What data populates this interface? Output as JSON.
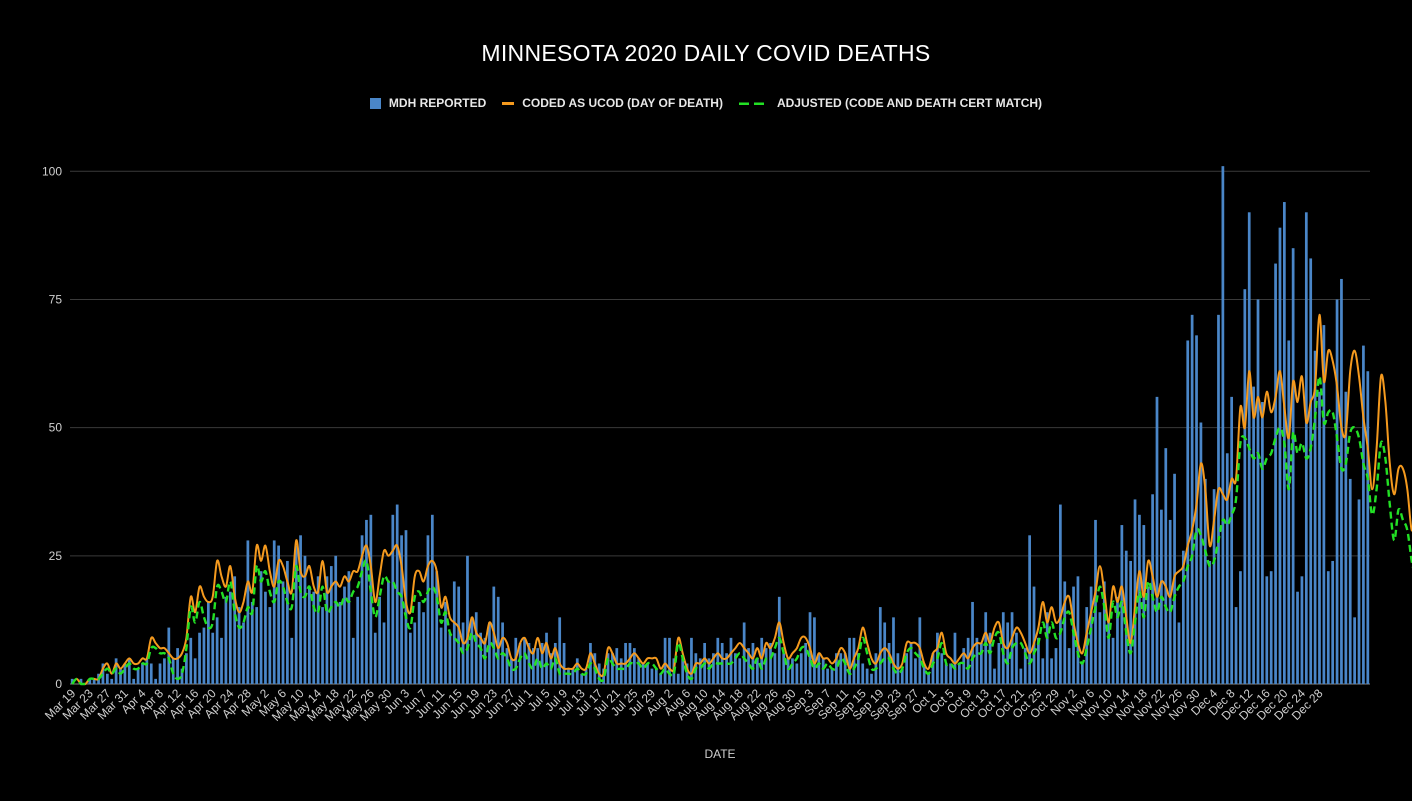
{
  "chart_data": {
    "type": "bar",
    "title": "MINNESOTA 2020 DAILY COVID DEATHS",
    "xlabel": "DATE",
    "ylabel": "",
    "ylim": [
      0,
      110
    ],
    "yticks": [
      0,
      25,
      50,
      75,
      100
    ],
    "grid": true,
    "legend_position": "top-center",
    "start_date": "2020-03-19",
    "tick_labels": [
      "Mar 19",
      "Mar 23",
      "Mar 27",
      "Mar 31",
      "Apr 4",
      "Apr 8",
      "Apr 12",
      "Apr 16",
      "Apr 20",
      "Apr 24",
      "Apr 28",
      "May 2",
      "May 6",
      "May 10",
      "May 14",
      "May 18",
      "May 22",
      "May 26",
      "May 30",
      "Jun 3",
      "Jun 7",
      "Jun 11",
      "Jun 15",
      "Jun 19",
      "Jun 23",
      "Jun 27",
      "Jul 1",
      "Jul 5",
      "Jul 9",
      "Jul 13",
      "Jul 17",
      "Jul 21",
      "Jul 25",
      "Jul 29",
      "Aug 2",
      "Aug 6",
      "Aug 10",
      "Aug 14",
      "Aug 18",
      "Aug 22",
      "Aug 26",
      "Aug 30",
      "Sep 3",
      "Sep 7",
      "Sep 11",
      "Sep 15",
      "Sep 19",
      "Sep 23",
      "Sep 27",
      "Oct 1",
      "Oct 5",
      "Oct 9",
      "Oct 13",
      "Oct 17",
      "Oct 21",
      "Oct 25",
      "Oct 29",
      "Nov 2",
      "Nov 6",
      "Nov 10",
      "Nov 14",
      "Nov 18",
      "Nov 22",
      "Nov 26",
      "Nov 30",
      "Dec 4",
      "Dec 8",
      "Dec 12",
      "Dec 16",
      "Dec 20",
      "Dec 24",
      "Dec 28"
    ],
    "series": [
      {
        "name": "MDH REPORTED",
        "type": "bar",
        "color": "#4a86c8",
        "values": [
          1,
          0,
          1,
          0,
          1,
          1,
          2,
          4,
          2,
          1,
          5,
          3,
          4,
          5,
          1,
          3,
          4,
          5,
          4,
          1,
          4,
          5,
          11,
          5,
          7,
          3,
          6,
          9,
          5,
          10,
          11,
          16,
          10,
          13,
          9,
          17,
          18,
          21,
          15,
          12,
          28,
          16,
          15,
          22,
          18,
          15,
          28,
          27,
          20,
          24,
          9,
          27,
          29,
          25,
          19,
          18,
          21,
          15,
          21,
          23,
          25,
          16,
          19,
          22,
          9,
          17,
          29,
          32,
          33,
          10,
          17,
          12,
          20,
          33,
          35,
          29,
          30,
          10,
          12,
          16,
          14,
          29,
          33,
          22,
          11,
          16,
          10,
          20,
          19,
          12,
          25,
          13,
          14,
          10,
          9,
          12,
          19,
          17,
          12,
          7,
          5,
          9,
          8,
          9,
          8,
          7,
          7,
          8,
          10,
          6,
          8,
          13,
          8,
          3,
          3,
          5,
          2,
          3,
          8,
          6,
          4,
          3,
          6,
          6,
          7,
          5,
          8,
          8,
          7,
          5,
          4,
          4,
          3,
          3,
          2,
          9,
          9,
          5,
          2,
          5,
          4,
          9,
          6,
          5,
          8,
          5,
          6,
          9,
          8,
          6,
          9,
          6,
          5,
          12,
          7,
          8,
          5,
          9,
          7,
          8,
          6,
          17,
          6,
          5,
          5,
          4,
          6,
          8,
          14,
          13,
          6,
          5,
          3,
          3,
          6,
          6,
          6,
          9,
          9,
          6,
          4,
          3,
          2,
          6,
          15,
          12,
          8,
          13,
          6,
          3,
          6,
          8,
          5,
          13,
          4,
          2,
          6,
          10,
          6,
          4,
          4,
          10,
          4,
          7,
          9,
          16,
          9,
          8,
          14,
          10,
          3,
          8,
          14,
          12,
          14,
          10,
          3,
          7,
          29,
          19,
          9,
          5,
          14,
          5,
          7,
          35,
          20,
          7,
          19,
          21,
          4,
          15,
          19,
          32,
          14,
          20,
          12,
          9,
          17,
          31,
          26,
          24,
          36,
          33,
          31,
          19,
          37,
          56,
          34,
          46,
          32,
          41,
          12,
          26,
          67,
          72,
          68,
          51,
          40,
          24,
          38,
          72,
          101,
          45,
          56,
          15,
          22,
          77,
          92,
          58,
          75,
          55,
          21,
          22,
          82,
          89,
          94,
          67,
          85,
          18,
          21,
          92,
          83,
          65,
          57,
          70,
          22,
          24,
          75,
          79,
          57,
          40,
          13,
          36,
          66,
          61
        ]
      },
      {
        "name": "CODED AS UCOD (DAY OF DEATH)",
        "type": "line",
        "color": "#f59a1e",
        "values": [
          0,
          1,
          0,
          0,
          1,
          1,
          1,
          3,
          4,
          2,
          4,
          3,
          4,
          5,
          4,
          4,
          5,
          5,
          9,
          8,
          7,
          7,
          6,
          5,
          5,
          6,
          9,
          17,
          14,
          19,
          17,
          16,
          17,
          24,
          21,
          19,
          23,
          17,
          14,
          16,
          20,
          18,
          27,
          24,
          27,
          22,
          19,
          24,
          23,
          20,
          18,
          28,
          22,
          21,
          23,
          19,
          18,
          24,
          18,
          19,
          20,
          19,
          21,
          20,
          22,
          22,
          25,
          27,
          23,
          16,
          21,
          26,
          25,
          26,
          27,
          23,
          16,
          14,
          21,
          22,
          20,
          23,
          24,
          22,
          15,
          17,
          13,
          12,
          11,
          8,
          9,
          13,
          10,
          9,
          8,
          12,
          10,
          7,
          9,
          8,
          5,
          5,
          8,
          9,
          7,
          6,
          9,
          6,
          8,
          5,
          7,
          4,
          3,
          3,
          3,
          4,
          3,
          3,
          6,
          4,
          2,
          2,
          7,
          6,
          4,
          4,
          4,
          5,
          6,
          5,
          4,
          5,
          5,
          5,
          3,
          4,
          3,
          3,
          9,
          6,
          3,
          2,
          4,
          4,
          5,
          4,
          5,
          6,
          5,
          5,
          6,
          7,
          8,
          7,
          6,
          5,
          7,
          5,
          8,
          7,
          9,
          12,
          8,
          5,
          6,
          7,
          9,
          9,
          7,
          4,
          6,
          5,
          5,
          4,
          5,
          7,
          6,
          3,
          5,
          7,
          11,
          8,
          5,
          4,
          6,
          7,
          6,
          4,
          3,
          4,
          8,
          8,
          8,
          7,
          4,
          3,
          6,
          7,
          10,
          6,
          5,
          4,
          5,
          6,
          5,
          7,
          8,
          8,
          10,
          8,
          11,
          12,
          8,
          7,
          9,
          11,
          10,
          8,
          6,
          8,
          11,
          16,
          12,
          15,
          12,
          13,
          16,
          17,
          12,
          8,
          6,
          10,
          14,
          18,
          23,
          18,
          12,
          19,
          16,
          19,
          13,
          8,
          15,
          22,
          17,
          24,
          21,
          17,
          20,
          19,
          17,
          21,
          22,
          23,
          27,
          30,
          35,
          43,
          38,
          27,
          32,
          38,
          37,
          36,
          40,
          40,
          54,
          50,
          61,
          52,
          56,
          52,
          57,
          53,
          56,
          61,
          54,
          48,
          59,
          55,
          60,
          51,
          55,
          58,
          72,
          59,
          65,
          63,
          58,
          50,
          49,
          61,
          65,
          60,
          52,
          46,
          38,
          46,
          60,
          55,
          43,
          37,
          42,
          42,
          38,
          30,
          33,
          20,
          12,
          18,
          10,
          5,
          5,
          5,
          3
        ]
      },
      {
        "name": "ADJUSTED (CODE AND DEATH CERT MATCH)",
        "type": "line",
        "dash": true,
        "color": "#22e024",
        "values": [
          0,
          1,
          0,
          0,
          1,
          1,
          1,
          2,
          3,
          2,
          3,
          2,
          3,
          4,
          3,
          3,
          4,
          4,
          7,
          7,
          6,
          6,
          5,
          2,
          1,
          2,
          7,
          15,
          12,
          16,
          13,
          11,
          12,
          19,
          18,
          16,
          20,
          14,
          11,
          12,
          15,
          14,
          23,
          20,
          22,
          18,
          16,
          20,
          19,
          16,
          15,
          23,
          18,
          17,
          19,
          15,
          14,
          19,
          14,
          15,
          16,
          15,
          17,
          16,
          18,
          19,
          22,
          24,
          18,
          13,
          17,
          21,
          20,
          20,
          18,
          17,
          13,
          11,
          17,
          18,
          16,
          18,
          19,
          17,
          12,
          14,
          10,
          9,
          8,
          6,
          7,
          10,
          8,
          7,
          5,
          8,
          7,
          5,
          6,
          5,
          3,
          3,
          5,
          6,
          4,
          3,
          5,
          3,
          4,
          3,
          5,
          2,
          2,
          2,
          2,
          3,
          2,
          2,
          4,
          3,
          1,
          1,
          5,
          4,
          3,
          3,
          3,
          4,
          4,
          4,
          3,
          4,
          4,
          3,
          2,
          3,
          2,
          2,
          8,
          5,
          2,
          1,
          3,
          3,
          4,
          3,
          4,
          4,
          4,
          4,
          4,
          5,
          6,
          5,
          4,
          3,
          5,
          3,
          5,
          5,
          7,
          9,
          6,
          3,
          4,
          5,
          7,
          7,
          5,
          3,
          4,
          3,
          4,
          3,
          3,
          5,
          4,
          2,
          3,
          5,
          9,
          6,
          3,
          3,
          4,
          5,
          5,
          3,
          2,
          3,
          6,
          7,
          6,
          5,
          3,
          2,
          4,
          5,
          8,
          4,
          4,
          3,
          4,
          4,
          3,
          5,
          6,
          6,
          8,
          6,
          9,
          10,
          6,
          4,
          7,
          8,
          8,
          6,
          4,
          6,
          8,
          12,
          9,
          12,
          9,
          10,
          13,
          14,
          10,
          6,
          4,
          7,
          11,
          15,
          19,
          15,
          9,
          16,
          13,
          16,
          10,
          6,
          12,
          18,
          13,
          20,
          17,
          14,
          17,
          15,
          14,
          17,
          19,
          20,
          23,
          25,
          30,
          29,
          26,
          23,
          24,
          28,
          32,
          31,
          33,
          36,
          47,
          48,
          46,
          44,
          45,
          42,
          44,
          45,
          48,
          50,
          47,
          38,
          49,
          45,
          47,
          44,
          46,
          52,
          60,
          51,
          53,
          53,
          48,
          42,
          43,
          49,
          50,
          48,
          43,
          40,
          33,
          38,
          47,
          44,
          35,
          28,
          34,
          32,
          30,
          24,
          20,
          14,
          8,
          12,
          6,
          3,
          3,
          3,
          2
        ]
      }
    ]
  }
}
